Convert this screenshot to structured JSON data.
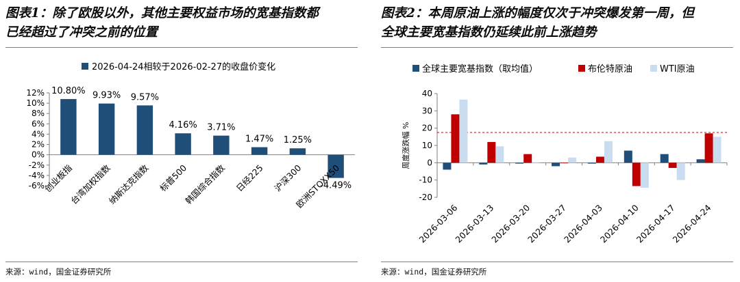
{
  "left_panel": {
    "title": "图表1：除了欧股以外，其他主要权益市场的宽基指数都已经超过了冲突之前的位置",
    "title_line1": "图表1：除了欧股以外，其他主要权益市场的宽基指数都",
    "title_line2": "已经超过了冲突之前的位置",
    "source": "来源：wind，国金证券研究所"
  },
  "right_panel": {
    "title": "图表2：本周原油上涨的幅度仅次于冲突爆发第一周，但全球主要宽基指数仍延续此前上涨趋势",
    "title_line1": "图表2：本周原油上涨的幅度仅次于冲突爆发第一周，但",
    "title_line2": "全球主要宽基指数仍延续此前上涨趋势",
    "source": "来源：wind，国金证券研究所"
  },
  "colors": {
    "navy": "#1f4e79",
    "red": "#c00000",
    "light_blue": "#c9dcf0",
    "ref_line": "#c00000"
  },
  "chart_data": [
    {
      "type": "bar",
      "title": "",
      "legend": [
        "2026-04-24相较于2026-02-27的收盘价变化"
      ],
      "legend_position": "top",
      "categories": [
        "创业板指",
        "台湾加权指数",
        "纳斯达克指数",
        "标普500",
        "韩国综合指数",
        "日经225",
        "沪深300",
        "欧洲STOXX50"
      ],
      "values": [
        10.8,
        9.93,
        9.57,
        4.16,
        3.71,
        1.47,
        1.25,
        -4.49
      ],
      "data_labels": [
        "10.80%",
        "9.93%",
        "9.57%",
        "4.16%",
        "3.71%",
        "1.47%",
        "1.25%",
        "-4.49%"
      ],
      "y_ticks": [
        "12%",
        "10%",
        "8%",
        "6%",
        "4%",
        "2%",
        "0%",
        "-2%",
        "-4%",
        "-6%"
      ],
      "ylim": [
        -6,
        12
      ],
      "xlabel": "",
      "ylabel": "",
      "grid": false
    },
    {
      "type": "bar",
      "title": "",
      "legend_position": "top",
      "categories": [
        "2026-03-06",
        "2026-03-13",
        "2026-03-20",
        "2026-03-27",
        "2026-04-03",
        "2026-04-10",
        "2026-04-17",
        "2026-04-24"
      ],
      "series": [
        {
          "name": "全球主要宽基指数（取均值）",
          "color": "#1f4e79",
          "values": [
            -4,
            -1,
            -0.5,
            -2,
            -0.5,
            7,
            5,
            2
          ]
        },
        {
          "name": "布伦特原油",
          "color": "#c00000",
          "values": [
            28,
            12,
            5,
            0,
            3.5,
            -13.5,
            -3,
            17
          ]
        },
        {
          "name": "WTI原油",
          "color": "#c9dcf0",
          "values": [
            36.5,
            9.5,
            0,
            3,
            12.5,
            -14.5,
            -10,
            15
          ]
        }
      ],
      "y_ticks": [
        "40",
        "30",
        "20",
        "10",
        "0",
        "-10",
        "-20"
      ],
      "ylim": [
        -20,
        40
      ],
      "xlabel": "",
      "ylabel": "周度涨跌幅 %",
      "reference_line": {
        "value": 17.5,
        "style": "dashed"
      },
      "grid": false
    }
  ]
}
